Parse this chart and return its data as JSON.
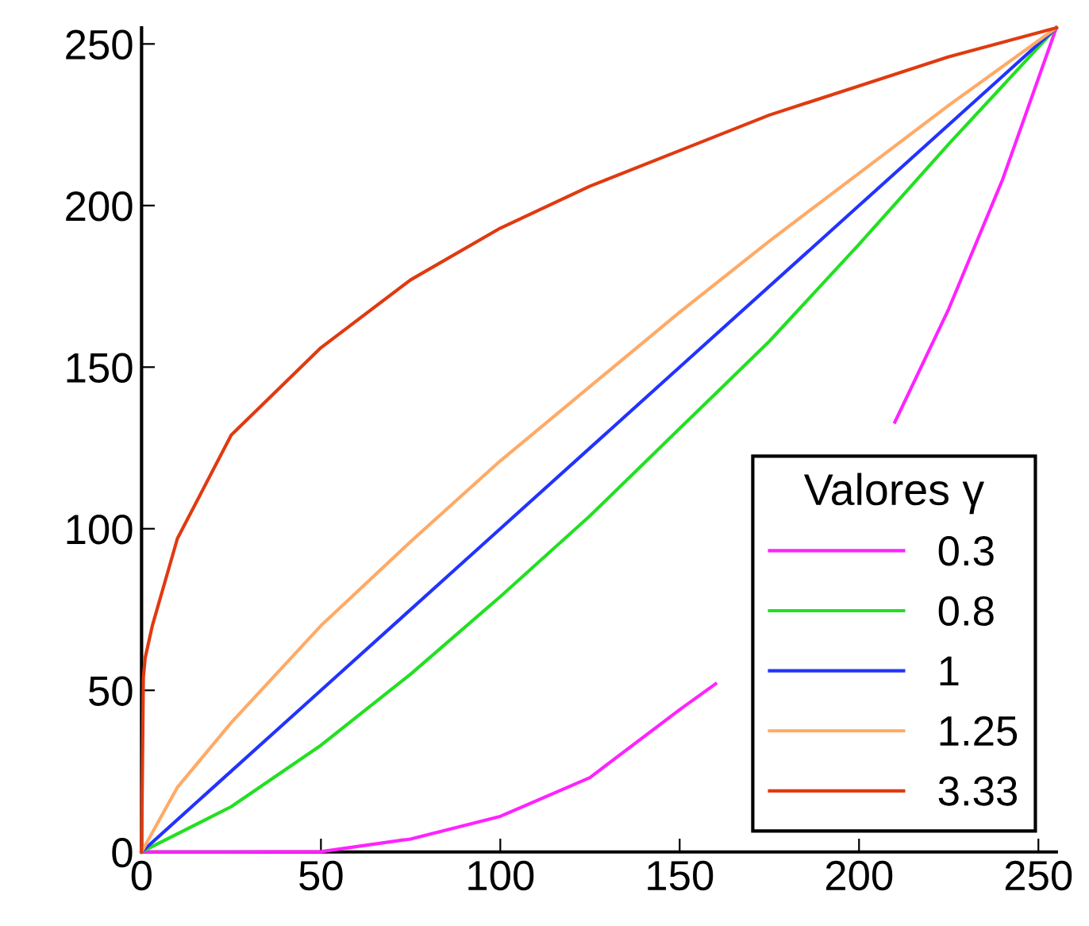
{
  "chart_data": {
    "type": "line",
    "legend_title": "Valores γ",
    "legend": "bottom right",
    "grid": false,
    "marker": "none",
    "line_style": "solid",
    "xlim": [
      0,
      255
    ],
    "ylim": [
      0,
      255
    ],
    "xticks": [
      0,
      50,
      100,
      150,
      200,
      250
    ],
    "yticks": [
      0,
      50,
      100,
      150,
      200,
      250
    ],
    "series": [
      {
        "name": "0.3",
        "color": "#ff22ff",
        "x": [
          0,
          25,
          50,
          75,
          100,
          125,
          150,
          160,
          185,
          210,
          225,
          240,
          255
        ],
        "values": [
          0,
          0,
          0.1,
          4,
          11,
          23,
          44,
          52,
          null,
          133,
          168,
          208,
          255
        ]
      },
      {
        "name": "0.8",
        "color": "#22e022",
        "x": [
          0,
          25,
          50,
          75,
          100,
          125,
          150,
          175,
          200,
          225,
          255
        ],
        "values": [
          0,
          14,
          33,
          55,
          79,
          104,
          131,
          158,
          188,
          219,
          255
        ]
      },
      {
        "name": "1",
        "color": "#2233ff",
        "x": [
          0,
          50,
          100,
          150,
          200,
          255
        ],
        "values": [
          0,
          50,
          100,
          150,
          200,
          255
        ]
      },
      {
        "name": "1.25",
        "color": "#ffaa66",
        "x": [
          0,
          10,
          25,
          50,
          75,
          100,
          125,
          150,
          175,
          200,
          225,
          255
        ],
        "values": [
          0,
          20,
          40,
          70,
          96,
          121,
          144,
          167,
          189,
          210,
          231,
          255
        ]
      },
      {
        "name": "3.33",
        "color": "#e03a10",
        "x": [
          0,
          0.5,
          1,
          3,
          10,
          25,
          50,
          75,
          100,
          125,
          150,
          175,
          200,
          225,
          255
        ],
        "values": [
          0,
          54,
          60,
          70,
          97,
          129,
          156,
          177,
          193,
          206,
          217,
          228,
          237,
          246,
          255
        ]
      }
    ]
  }
}
